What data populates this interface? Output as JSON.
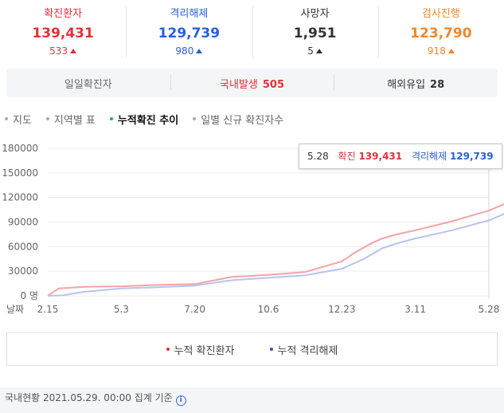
{
  "stats": [
    {
      "label": "확진환자",
      "value": "139,431",
      "delta": "533",
      "color": "#e0323c",
      "arrow": "up"
    },
    {
      "label": "격리해제",
      "value": "129,739",
      "delta": "980",
      "color": "#2b5fd9",
      "arrow": "up"
    },
    {
      "label": "사망자",
      "value": "1,951",
      "delta": "5",
      "color": "#333333",
      "arrow": "up"
    },
    {
      "label": "검사진행",
      "value": "123,790",
      "delta": "918",
      "color": "#f0882b",
      "arrow": "up"
    }
  ],
  "daily": {
    "label": "일일확진자",
    "domestic_label": "국내발생",
    "domestic_value": "505",
    "overseas_label": "해외유입",
    "overseas_value": "28"
  },
  "tabs": [
    {
      "label": "지도",
      "active": false
    },
    {
      "label": "지역별 표",
      "active": false
    },
    {
      "label": "누적확진 추이",
      "active": true
    },
    {
      "label": "일별 신규 확진자수",
      "active": false
    }
  ],
  "tooltip": {
    "date": "5.28",
    "confirmed_label": "확진",
    "confirmed_value": "139,431",
    "released_label": "격리해제",
    "released_value": "129,739"
  },
  "chart_data": {
    "type": "line",
    "x_label": "날짜",
    "x_ticks": [
      "2.15",
      "5.3",
      "7.20",
      "10.6",
      "12.23",
      "3.11",
      "5.28"
    ],
    "y_ticks": [
      "0 명",
      "30000",
      "60000",
      "90000",
      "120000",
      "150000",
      "180000"
    ],
    "ylim": [
      0,
      180000
    ],
    "grid": true,
    "colors": {
      "confirmed": "#f4a3a8",
      "released": "#b9c3ee",
      "confirmed_marker": "#d9313c",
      "released_marker": "#3b4fb8"
    },
    "series": [
      {
        "name": "누적 확진환자",
        "key": "confirmed",
        "x": [
          0,
          0.15,
          0.5,
          1.0,
          1.5,
          2.0,
          2.5,
          3.0,
          3.5,
          4.0,
          4.2,
          4.4,
          4.55,
          4.75,
          5.0,
          5.5,
          6.0,
          6.5,
          6.8
        ],
        "y": [
          30,
          9000,
          11000,
          11600,
          13200,
          14300,
          23000,
          25500,
          29000,
          42000,
          54000,
          64000,
          70000,
          75000,
          80000,
          91000,
          104000,
          123000,
          139431
        ]
      },
      {
        "name": "누적 격리해제",
        "key": "released",
        "x": [
          0,
          0.2,
          0.5,
          1.0,
          1.5,
          2.0,
          2.5,
          3.0,
          3.5,
          4.0,
          4.3,
          4.55,
          4.75,
          5.0,
          5.5,
          6.0,
          6.5,
          6.8
        ],
        "y": [
          20,
          500,
          5000,
          9000,
          10500,
          12500,
          19000,
          22000,
          25000,
          33000,
          45000,
          58000,
          64000,
          70000,
          80000,
          92000,
          111000,
          129739
        ]
      }
    ]
  },
  "legend": [
    {
      "label": "누적 확진환자",
      "color": "#d9313c"
    },
    {
      "label": "누적 격리해제",
      "color": "#3b4fb8"
    }
  ],
  "footer": {
    "text": "국내현황 2021.05.29. 00:00 집계 기준",
    "icon": "info-icon"
  }
}
